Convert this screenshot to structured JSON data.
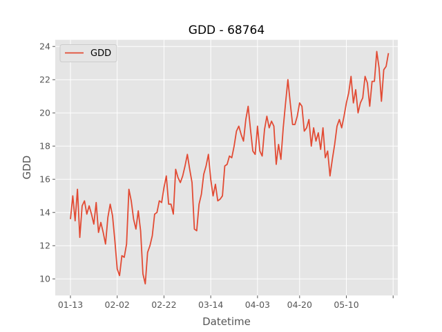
{
  "chart_data": {
    "type": "line",
    "title": "GDD - 68764",
    "xlabel": "Datetime",
    "ylabel": "GDD",
    "x_start": "01-13",
    "x_tick_labels": [
      "01-13",
      "02-02",
      "02-22",
      "03-14",
      "04-03",
      "04-20",
      "05-10",
      ""
    ],
    "x_tick_days": [
      0,
      20,
      40,
      60,
      80,
      98,
      118,
      138
    ],
    "xlim_days": [
      -6.5,
      140
    ],
    "y_ticks": [
      10,
      12,
      14,
      16,
      18,
      20,
      22,
      24
    ],
    "ylim": [
      9.0,
      24.4
    ],
    "grid": true,
    "legend_position": "upper-left",
    "series": [
      {
        "name": "GDD",
        "color": "#E24A33",
        "values": [
          13.6,
          15.0,
          13.5,
          15.4,
          12.5,
          14.4,
          14.7,
          13.9,
          14.4,
          13.9,
          13.3,
          14.6,
          12.8,
          13.4,
          12.8,
          12.1,
          13.7,
          14.5,
          13.8,
          12.3,
          10.6,
          10.2,
          11.4,
          11.3,
          12.1,
          15.4,
          14.7,
          13.6,
          13.0,
          14.1,
          12.9,
          10.3,
          9.7,
          11.6,
          12.0,
          12.6,
          13.9,
          14.0,
          14.7,
          14.6,
          15.5,
          16.2,
          14.5,
          14.5,
          13.9,
          16.6,
          16.1,
          15.8,
          16.2,
          16.8,
          17.5,
          16.6,
          15.8,
          13.0,
          12.9,
          14.5,
          15.1,
          16.3,
          16.8,
          17.5,
          16.0,
          15.0,
          15.7,
          14.7,
          14.8,
          15.0,
          16.8,
          16.9,
          17.4,
          17.3,
          18.0,
          18.9,
          19.2,
          18.7,
          18.3,
          19.6,
          20.4,
          19.0,
          17.7,
          17.5,
          19.2,
          17.7,
          17.4,
          19.0,
          19.8,
          19.1,
          19.5,
          19.2,
          16.9,
          18.1,
          17.2,
          19.1,
          20.6,
          22.0,
          20.6,
          19.3,
          19.3,
          19.8,
          20.6,
          20.4,
          18.9,
          19.1,
          19.6,
          18.0,
          19.1,
          18.3,
          18.8,
          17.8,
          19.1,
          17.3,
          17.7,
          16.2,
          17.2,
          18.1,
          19.2,
          19.6,
          19.1,
          19.8,
          20.6,
          21.2,
          22.2,
          20.6,
          21.4,
          20.0,
          20.6,
          20.9,
          22.2,
          21.8,
          20.4,
          21.9,
          21.9,
          23.7,
          22.7,
          20.7,
          22.6,
          22.8,
          23.6
        ]
      }
    ]
  }
}
